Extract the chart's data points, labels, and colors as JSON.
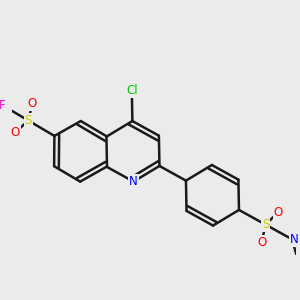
{
  "bg_color": "#ebebeb",
  "bond_color": "#1a1a1a",
  "bond_width": 1.8,
  "atom_colors": {
    "N": "#0000ff",
    "Cl": "#00cc00",
    "F": "#ff00cc",
    "S": "#cccc00",
    "O": "#ff0000",
    "C": "#1a1a1a"
  },
  "atom_sizes": {
    "N": 8.5,
    "Cl": 8.5,
    "F": 8.5,
    "S": 8.5,
    "O": 8.5
  }
}
